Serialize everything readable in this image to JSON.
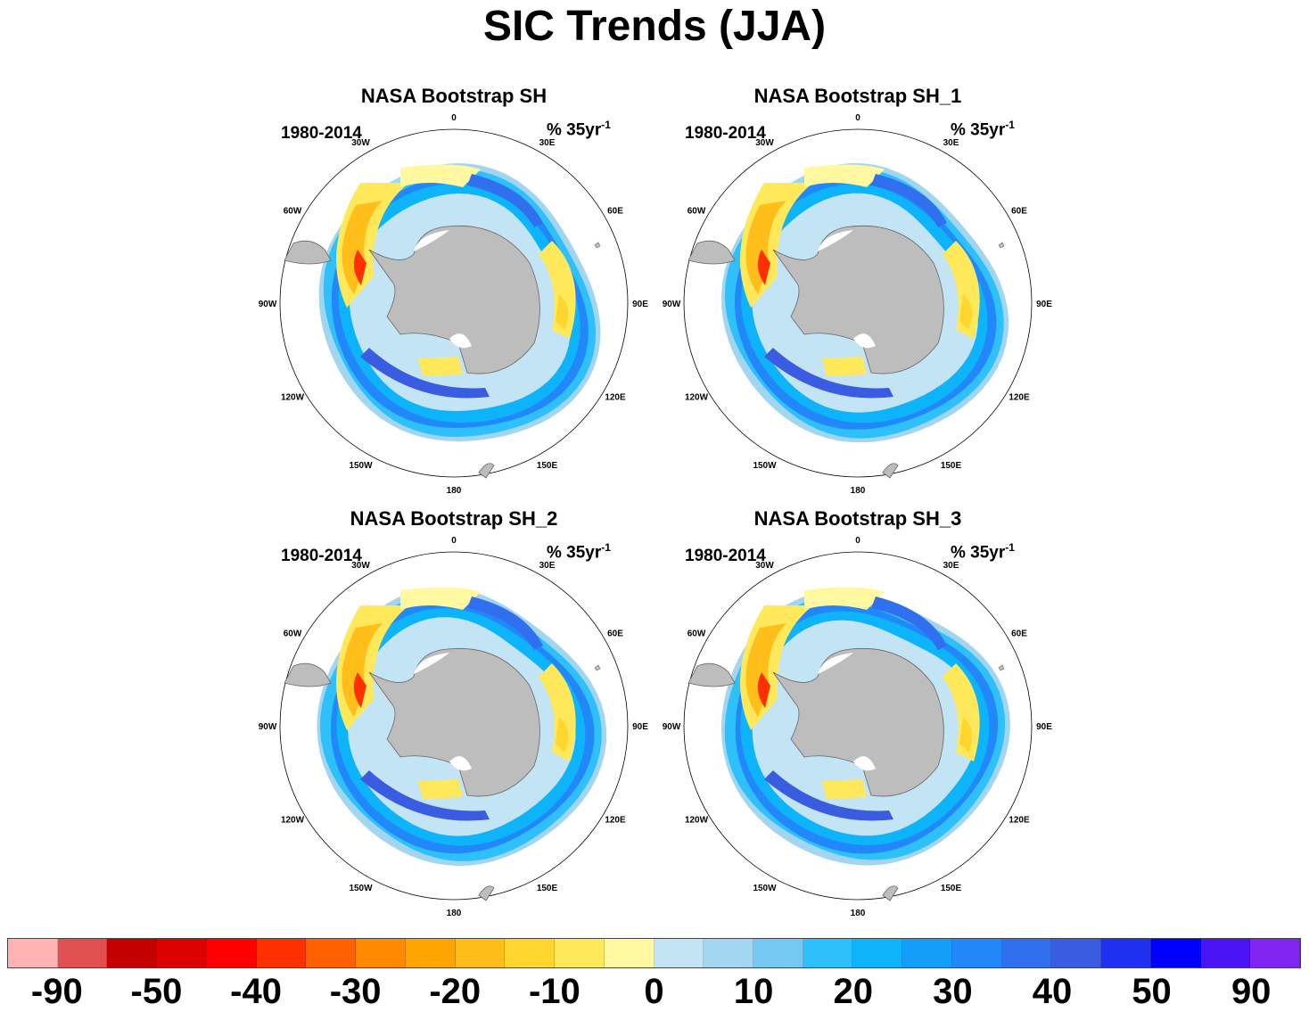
{
  "title": "SIC Trends (JJA)",
  "panels": [
    {
      "title": "NASA Bootstrap SH",
      "period": "1980-2014",
      "units": "% 35yr",
      "units_sup": "-1"
    },
    {
      "title": "NASA Bootstrap SH_1",
      "period": "1980-2014",
      "units": "% 35yr",
      "units_sup": "-1"
    },
    {
      "title": "NASA Bootstrap SH_2",
      "period": "1980-2014",
      "units": "% 35yr",
      "units_sup": "-1"
    },
    {
      "title": "NASA Bootstrap SH_3",
      "period": "1980-2014",
      "units": "% 35yr",
      "units_sup": "-1"
    }
  ],
  "longitude_labels": [
    "0",
    "30E",
    "60E",
    "90E",
    "120E",
    "150E",
    "180",
    "150W",
    "120W",
    "90W",
    "60W",
    "30W"
  ],
  "colorbar": {
    "colors": [
      "#ffb3b3",
      "#e05050",
      "#c40000",
      "#dc0000",
      "#ff0000",
      "#ff3000",
      "#ff6000",
      "#ff8a00",
      "#ffa500",
      "#ffbe1a",
      "#ffd62e",
      "#ffe85a",
      "#fff8a0",
      "#c2e4f5",
      "#a2d6f0",
      "#74c8f2",
      "#2dc0fa",
      "#0eb4fa",
      "#159dfa",
      "#2288fa",
      "#3070ee",
      "#3a5ce0",
      "#2030f0",
      "#0000ff",
      "#4a14f5",
      "#8224f2"
    ],
    "labels": [
      "-90",
      "-50",
      "-40",
      "-30",
      "-20",
      "-10",
      "0",
      "10",
      "20",
      "30",
      "40",
      "50",
      "90"
    ]
  },
  "colors": {
    "land": "#bdbdbd",
    "ocean": "#ffffff"
  }
}
